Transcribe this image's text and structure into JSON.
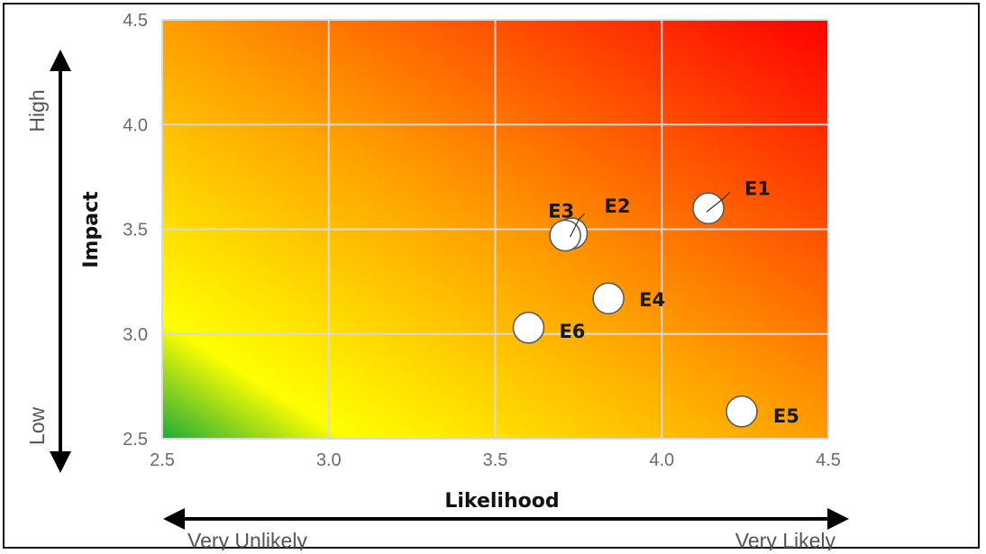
{
  "chart_data": {
    "type": "scatter",
    "title": "",
    "xlabel": "Likelihood",
    "ylabel": "Impact",
    "xlim": [
      2.5,
      4.5
    ],
    "ylim": [
      2.5,
      4.5
    ],
    "x_ticks": [
      "2.5",
      "3.0",
      "3.5",
      "4.0",
      "4.5"
    ],
    "y_ticks": [
      "2.5",
      "3.0",
      "3.5",
      "4.0",
      "4.5"
    ],
    "grid": true,
    "background": "gradient green (bottom-left) to yellow to orange to red (top-right)",
    "x_scale_labels": {
      "low": "Very Unlikely",
      "high": "Very Likely"
    },
    "y_scale_labels": {
      "low": "Low",
      "high": "High"
    },
    "points": [
      {
        "label": "E1",
        "x": 4.14,
        "y": 3.6
      },
      {
        "label": "E2",
        "x": 3.73,
        "y": 3.48
      },
      {
        "label": "E3",
        "x": 3.71,
        "y": 3.47
      },
      {
        "label": "E4",
        "x": 3.84,
        "y": 3.17
      },
      {
        "label": "E5",
        "x": 4.24,
        "y": 2.63
      },
      {
        "label": "E6",
        "x": 3.6,
        "y": 3.03
      }
    ]
  },
  "colors": {
    "green": "#1faa3a",
    "yellow": "#ffff00",
    "orange": "#ff9d00",
    "red": "#ff0000",
    "grid": "#d9d9d9",
    "marker_fill": "#ffffff",
    "marker_stroke": "#555555"
  }
}
